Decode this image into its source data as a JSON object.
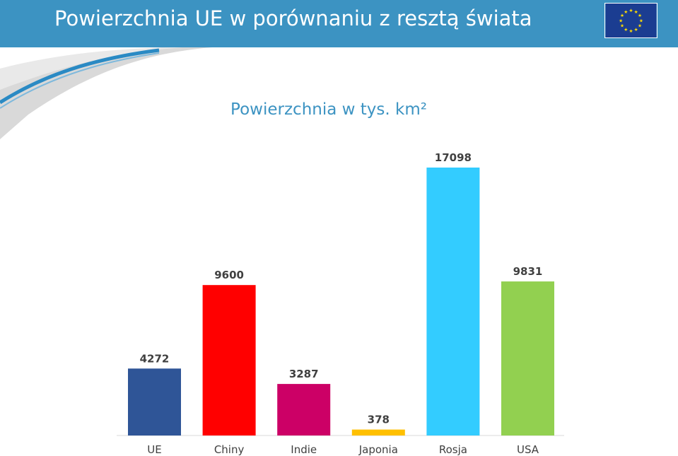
{
  "header": {
    "title": "Powierzchnia UE w porównaniu z resztą świata",
    "background": "#3c93c2",
    "flag_icon": "eu-flag-icon",
    "flag_color": "#1b3d91",
    "star_color": "#ffdd00"
  },
  "chart_data": {
    "type": "bar",
    "title": "Powierzchnia w tys. km²",
    "categories": [
      "UE",
      "Chiny",
      "Indie",
      "Japonia",
      "Rosja",
      "USA"
    ],
    "values": [
      4272,
      9600,
      3287,
      378,
      17098,
      9831
    ],
    "colors": [
      "#2f5597",
      "#ff0000",
      "#cc0066",
      "#ffc000",
      "#33ccff",
      "#92d050"
    ],
    "xlabel": "",
    "ylabel": "",
    "ylim": [
      0,
      17098
    ],
    "grid": false,
    "legend": "none",
    "data_labels": true
  }
}
